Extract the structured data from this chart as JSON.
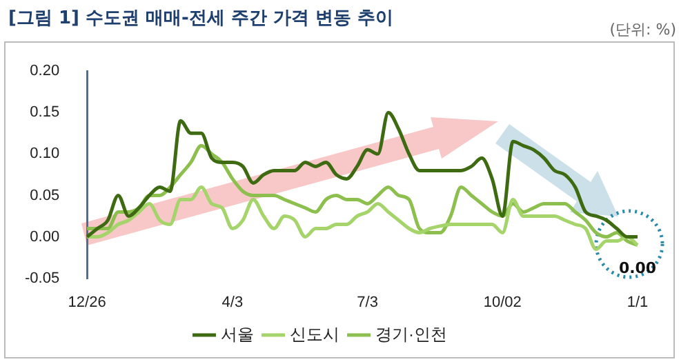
{
  "chart_data": {
    "type": "line",
    "title": "[그림 1] 수도권 매매-전세 주간 가격 변동 추이",
    "annotations": [
      "(단위: %)",
      {
        "text": "0.00",
        "x": "1/1",
        "y": 0.0
      }
    ],
    "categories": [
      "12/26",
      null,
      null,
      null,
      null,
      null,
      null,
      null,
      null,
      null,
      null,
      null,
      null,
      null,
      "4/3",
      null,
      null,
      null,
      null,
      null,
      null,
      null,
      null,
      null,
      null,
      null,
      null,
      "7/3",
      null,
      null,
      null,
      null,
      null,
      null,
      null,
      null,
      null,
      null,
      null,
      null,
      "10/02",
      null,
      null,
      null,
      null,
      null,
      null,
      null,
      null,
      null,
      null,
      null,
      null,
      "1/1"
    ],
    "series": [
      {
        "name": "서울",
        "color": "#3e6b12",
        "values": [
          0.0,
          0.01,
          0.02,
          0.05,
          0.025,
          0.035,
          0.05,
          0.06,
          0.055,
          0.14,
          0.125,
          0.125,
          0.095,
          0.09,
          0.09,
          0.085,
          0.065,
          0.075,
          0.08,
          0.08,
          0.08,
          0.09,
          0.085,
          0.09,
          0.075,
          0.07,
          0.085,
          0.105,
          0.1,
          0.15,
          0.13,
          0.1,
          0.08,
          0.08,
          0.08,
          0.08,
          0.08,
          0.085,
          0.095,
          0.07,
          0.025,
          0.115,
          0.11,
          0.105,
          0.095,
          0.08,
          0.075,
          0.06,
          0.03,
          0.025,
          0.02,
          0.01,
          0.0,
          0.0
        ]
      },
      {
        "name": "신도시",
        "color": "#a5d46a",
        "values": [
          0.0,
          0.0,
          0.005,
          0.015,
          0.02,
          0.03,
          0.04,
          0.02,
          0.015,
          0.045,
          0.045,
          0.06,
          0.04,
          0.035,
          0.01,
          0.02,
          0.045,
          0.025,
          0.01,
          0.025,
          0.02,
          0.0,
          0.01,
          0.01,
          0.015,
          0.015,
          0.025,
          0.03,
          0.04,
          0.03,
          0.02,
          0.01,
          0.005,
          0.01,
          0.013,
          0.015,
          0.015,
          0.015,
          0.015,
          0.015,
          0.005,
          0.045,
          0.025,
          0.025,
          0.025,
          0.025,
          0.02,
          0.015,
          0.01,
          -0.015,
          -0.005,
          -0.005,
          0.0,
          -0.01
        ]
      },
      {
        "name": "경기·인천",
        "color": "#8cbf4e",
        "values": [
          0.01,
          0.01,
          0.01,
          0.03,
          0.03,
          0.035,
          0.05,
          0.05,
          0.06,
          0.075,
          0.09,
          0.11,
          0.1,
          0.09,
          0.07,
          0.055,
          0.05,
          0.05,
          0.05,
          0.045,
          0.04,
          0.035,
          0.03,
          0.045,
          0.05,
          0.045,
          0.045,
          0.04,
          0.05,
          0.06,
          0.05,
          0.045,
          0.01,
          0.005,
          0.005,
          0.025,
          0.06,
          0.05,
          0.04,
          0.03,
          0.025,
          0.04,
          0.03,
          0.035,
          0.04,
          0.04,
          0.04,
          0.03,
          0.02,
          0.005,
          0.0,
          0.005,
          -0.005,
          -0.01
        ]
      }
    ],
    "ylim": [
      -0.05,
      0.2
    ],
    "yticks": [
      {
        "value": -0.05,
        "label": "-0.05"
      },
      {
        "value": 0.0,
        "label": "0.00"
      },
      {
        "value": 0.05,
        "label": "0.05"
      },
      {
        "value": 0.1,
        "label": "0.10"
      },
      {
        "value": 0.15,
        "label": "0.15"
      },
      {
        "value": 0.2,
        "label": "0.20"
      }
    ],
    "legend": "bottom",
    "marker": "none",
    "line_style": "solid"
  }
}
